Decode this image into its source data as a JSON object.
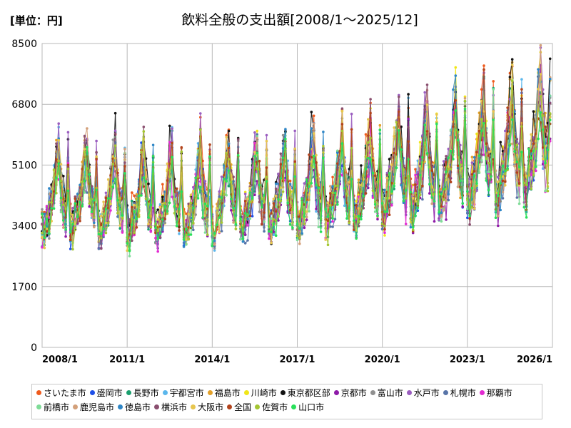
{
  "chart_data": {
    "type": "line",
    "title": "飲料全般の支出額[2008/1～2025/12]",
    "unit_label": "[単位：円]",
    "ylim": [
      0,
      8500
    ],
    "yticks": [
      0,
      1700,
      3400,
      5100,
      6800,
      8500
    ],
    "xlim": [
      2008.0,
      2026.0
    ],
    "xticks": [
      {
        "value": 2008,
        "label": "2008/1"
      },
      {
        "value": 2011,
        "label": "2011/1"
      },
      {
        "value": 2014,
        "label": "2014/1"
      },
      {
        "value": 2017,
        "label": "2017/1"
      },
      {
        "value": 2020,
        "label": "2020/1"
      },
      {
        "value": 2023,
        "label": "2023/1"
      },
      {
        "value": 2026,
        "label": "2026/1"
      }
    ],
    "grid": true,
    "legend_position": "bottom",
    "x_start": 2008.0,
    "month_step": 0.08333,
    "base_monthly_profile": [
      3350,
      3200,
      3600,
      3750,
      4000,
      4450,
      5050,
      5350,
      4400,
      3950,
      3750,
      5000
    ],
    "yearly_level": [
      1.0,
      1.01,
      0.99,
      0.98,
      0.99,
      1.0,
      1.01,
      1.02,
      1.03,
      1.05,
      1.08,
      1.1,
      1.17,
      1.19,
      1.23,
      1.26,
      1.3,
      1.36
    ],
    "series": [
      {
        "name": "さいたま市",
        "color": "#ef5a1c",
        "offset": 0.04,
        "seed": 11
      },
      {
        "name": "盛岡市",
        "color": "#1e4fe8",
        "offset": -0.02,
        "seed": 23
      },
      {
        "name": "長野市",
        "color": "#1a9f6e",
        "offset": 0.0,
        "seed": 37
      },
      {
        "name": "宇都宮市",
        "color": "#5bb7ec",
        "offset": 0.01,
        "seed": 41
      },
      {
        "name": "福島市",
        "color": "#e3a12a",
        "offset": 0.03,
        "seed": 53
      },
      {
        "name": "川崎市",
        "color": "#f0e619",
        "offset": 0.02,
        "seed": 67
      },
      {
        "name": "東京都区部",
        "color": "#111111",
        "offset": 0.06,
        "seed": 71
      },
      {
        "name": "京都市",
        "color": "#8e1aa8",
        "offset": -0.05,
        "seed": 83
      },
      {
        "name": "富山市",
        "color": "#909090",
        "offset": -0.01,
        "seed": 97
      },
      {
        "name": "水戸市",
        "color": "#9b5ec0",
        "offset": 0.05,
        "seed": 101
      },
      {
        "name": "札幌市",
        "color": "#5874a8",
        "offset": -0.04,
        "seed": 113
      },
      {
        "name": "那覇市",
        "color": "#e22bd1",
        "offset": -0.03,
        "seed": 127
      },
      {
        "name": "前橋市",
        "color": "#7fdc98",
        "offset": -0.02,
        "seed": 131
      },
      {
        "name": "鹿児島市",
        "color": "#d3a07a",
        "offset": 0.0,
        "seed": 149
      },
      {
        "name": "徳島市",
        "color": "#2f86c6",
        "offset": 0.01,
        "seed": 157
      },
      {
        "name": "横浜市",
        "color": "#8a4f6f",
        "offset": 0.02,
        "seed": 163
      },
      {
        "name": "大阪市",
        "color": "#e7c64f",
        "offset": 0.01,
        "seed": 173
      },
      {
        "name": "全国",
        "color": "#b2431c",
        "offset": 0.0,
        "seed": 181
      },
      {
        "name": "佐賀市",
        "color": "#a4c632",
        "offset": -0.03,
        "seed": 191
      },
      {
        "name": "山口市",
        "color": "#29e05a",
        "offset": -0.04,
        "seed": 199
      }
    ]
  }
}
